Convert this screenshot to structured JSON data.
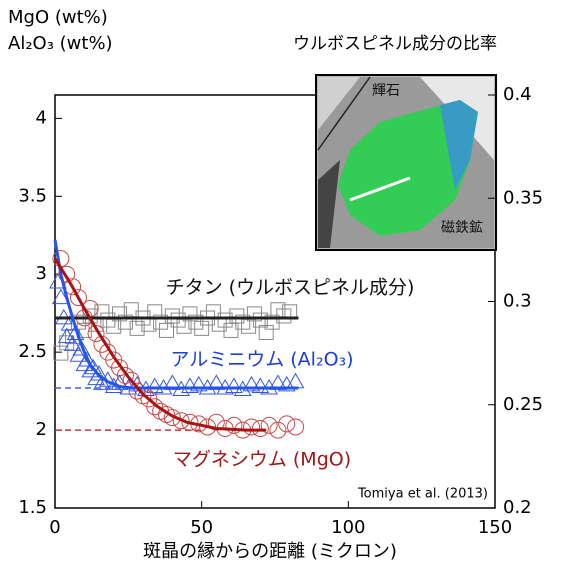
{
  "chart_data": {
    "type": "scatter",
    "y_label_lines": [
      "MgO (wt%)",
      "Al₂O₃ (wt%)"
    ],
    "y2_label": "ウルボスピネル成分の比率",
    "x_label": "斑晶の縁からの距離 (ミクロン)",
    "source": "Tomiya et al. (2013)",
    "xlim": [
      0,
      150
    ],
    "xticks": [
      0,
      50,
      100,
      150
    ],
    "ylim": [
      1.5,
      4.15
    ],
    "yticks": [
      1.5,
      2,
      2.5,
      3,
      3.5,
      4
    ],
    "y2lim": [
      0.2,
      0.4
    ],
    "y2ticks": [
      0.2,
      0.25,
      0.3,
      0.35,
      0.4
    ],
    "series": [
      {
        "name": "チタン (ウルボスピネル成分)",
        "color": "#888888",
        "marker": "square",
        "axis": "y2",
        "x": [
          2,
          4,
          6,
          8,
          10,
          12,
          14,
          16,
          18,
          20,
          22,
          24,
          26,
          28,
          30,
          32,
          34,
          36,
          38,
          40,
          42,
          44,
          46,
          48,
          50,
          52,
          54,
          56,
          58,
          60,
          62,
          64,
          66,
          68,
          70,
          72,
          74,
          76,
          78,
          80
        ],
        "values": [
          0.275,
          0.28,
          0.283,
          0.29,
          0.286,
          0.293,
          0.289,
          0.295,
          0.291,
          0.288,
          0.294,
          0.29,
          0.296,
          0.287,
          0.292,
          0.289,
          0.295,
          0.29,
          0.286,
          0.293,
          0.291,
          0.288,
          0.294,
          0.29,
          0.287,
          0.292,
          0.295,
          0.289,
          0.291,
          0.286,
          0.293,
          0.29,
          0.288,
          0.294,
          0.291,
          0.285,
          0.29,
          0.296,
          0.293,
          0.295
        ]
      },
      {
        "name": "アルミニウム (Al₂O₃)",
        "color": "#3355ee",
        "marker": "triangle",
        "x": [
          1,
          2,
          3,
          4,
          5,
          6,
          7,
          8,
          9,
          10,
          11,
          12,
          13,
          14,
          15,
          16,
          18,
          20,
          22,
          25,
          28,
          31,
          34,
          37,
          40,
          43,
          46,
          49,
          52,
          55,
          58,
          61,
          64,
          67,
          70,
          73,
          76,
          79,
          82
        ],
        "values": [
          2.95,
          2.85,
          2.72,
          2.6,
          2.68,
          2.55,
          2.62,
          2.48,
          2.52,
          2.42,
          2.45,
          2.38,
          2.4,
          2.33,
          2.36,
          2.3,
          2.32,
          2.28,
          2.3,
          2.27,
          2.29,
          2.26,
          2.28,
          2.27,
          2.3,
          2.26,
          2.28,
          2.29,
          2.27,
          2.3,
          2.27,
          2.28,
          2.26,
          2.29,
          2.28,
          2.27,
          2.3,
          2.29,
          2.31
        ]
      },
      {
        "name": "マグネシウム (MgO)",
        "color": "#c84848",
        "marker": "circle",
        "x": [
          2,
          4,
          6,
          8,
          10,
          12,
          14,
          16,
          18,
          20,
          22,
          24,
          26,
          28,
          30,
          32,
          34,
          36,
          38,
          40,
          43,
          46,
          49,
          52,
          55,
          58,
          61,
          64,
          67,
          70,
          73,
          76,
          79,
          82
        ],
        "values": [
          3.1,
          3.0,
          2.92,
          2.85,
          2.72,
          2.78,
          2.62,
          2.55,
          2.5,
          2.45,
          2.4,
          2.35,
          2.32,
          2.25,
          2.22,
          2.2,
          2.15,
          2.12,
          2.1,
          2.08,
          2.06,
          2.05,
          2.04,
          2.02,
          2.05,
          2.01,
          2.03,
          2.0,
          2.02,
          2.01,
          2.03,
          2.0,
          2.04,
          2.02
        ]
      }
    ],
    "fits": [
      {
        "color": "#222222",
        "axis": "y2",
        "x": [
          0,
          83
        ],
        "values": [
          0.292,
          0.292
        ]
      },
      {
        "color": "#2255ee",
        "x": [
          0,
          2,
          4,
          6,
          8,
          10,
          12,
          15,
          18,
          22,
          26,
          30,
          40,
          60,
          83
        ],
        "values": [
          3.22,
          3.0,
          2.85,
          2.72,
          2.6,
          2.5,
          2.42,
          2.35,
          2.31,
          2.28,
          2.27,
          2.27,
          2.27,
          2.27,
          2.27
        ]
      },
      {
        "color": "#aa1111",
        "x": [
          0,
          5,
          10,
          15,
          20,
          25,
          30,
          35,
          40,
          45,
          50,
          55,
          60,
          65,
          72
        ],
        "values": [
          3.1,
          2.95,
          2.78,
          2.62,
          2.47,
          2.34,
          2.23,
          2.15,
          2.09,
          2.05,
          2.03,
          2.01,
          2.005,
          2.0,
          2.0
        ]
      }
    ],
    "reference_lines": [
      {
        "color": "#3366ee",
        "x": [
          0,
          30
        ],
        "values": [
          2.27,
          2.27
        ]
      },
      {
        "color": "#cc3333",
        "x": [
          0,
          50
        ],
        "values": [
          2.0,
          2.0
        ]
      }
    ],
    "inset_labels": [
      "輝石",
      "磁鉄鉱"
    ]
  }
}
